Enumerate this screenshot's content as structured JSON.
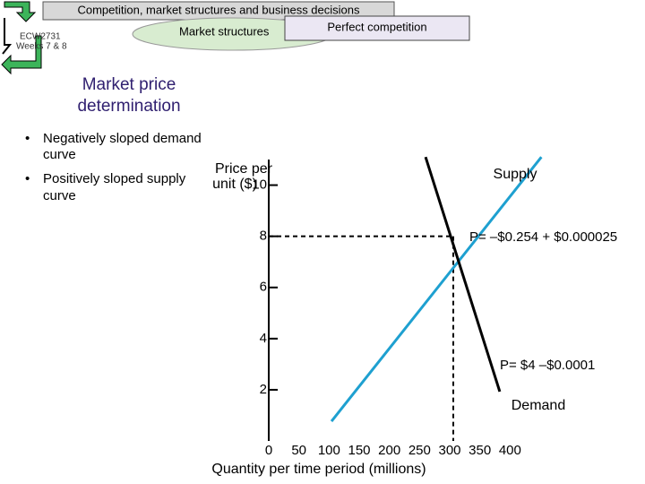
{
  "header": {
    "title": "Competition, market structures and business decisions",
    "course": "ECW2731",
    "weeks": "Weeks 7 & 8",
    "tab": "Market structures",
    "section": "Perfect competition"
  },
  "slide_title": [
    "Market price",
    "determination"
  ],
  "bullets": [
    [
      "Negatively sloped demand",
      "curve"
    ],
    [
      "Positively sloped supply",
      "curve"
    ]
  ],
  "chart_data": {
    "type": "line",
    "ylabel": [
      "Price per",
      "unit ($)"
    ],
    "xlabel": "Quantity per time period (millions)",
    "xlim": [
      0,
      450
    ],
    "ylim": [
      0,
      11
    ],
    "xticks": [
      0,
      50,
      100,
      150,
      200,
      250,
      300,
      350,
      400
    ],
    "yticks": [
      2,
      4,
      6,
      8,
      10
    ],
    "series": [
      {
        "name": "Supply",
        "color": "#1ea0d0",
        "x": [
          104,
          452
        ],
        "y": [
          0.77,
          11.1
        ],
        "equation": "P= –$0.254 + $0.000025"
      },
      {
        "name": "Demand",
        "color": "#000000",
        "x": [
          260,
          383
        ],
        "y": [
          11.1,
          1.93
        ],
        "equation": "P= $4 –$0.0001"
      }
    ]
  }
}
